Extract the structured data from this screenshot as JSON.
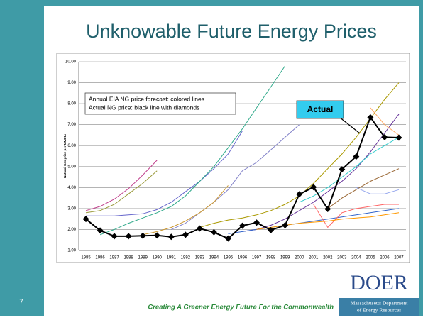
{
  "chart_data": {
    "type": "line",
    "title": "Unknowable Future Energy Prices",
    "y_label": "Natural Gas price per MMBtu",
    "annotations": [
      "Annual EIA NG price forecast: colored lines",
      "Actual NG price: black line with diamonds"
    ],
    "callout": "Actual",
    "categories": [
      "1985",
      "1986",
      "1987",
      "1988",
      "1989",
      "1990",
      "1991",
      "1992",
      "1993",
      "1994",
      "1995",
      "1996",
      "1997",
      "1998",
      "1999",
      "2000",
      "2001",
      "2002",
      "2003",
      "2004",
      "2005",
      "2006",
      "2007"
    ],
    "ylim": [
      1,
      10
    ],
    "yticks": [
      {
        "value": 1,
        "label": "1.00"
      },
      {
        "value": 2,
        "label": "2.00"
      },
      {
        "value": 3,
        "label": "3.00"
      },
      {
        "value": 4,
        "label": "4.00"
      },
      {
        "value": 5,
        "label": "5.00"
      },
      {
        "value": 6,
        "label": "6.00"
      },
      {
        "value": 7,
        "label": "7.00"
      },
      {
        "value": 8,
        "label": "8.00"
      },
      {
        "value": 9,
        "label": "9.00"
      },
      {
        "value": 10,
        "label": "10.00"
      }
    ],
    "grid": true,
    "actual": {
      "color": "#000000",
      "values": [
        2.5,
        1.95,
        1.68,
        1.68,
        1.7,
        1.72,
        1.65,
        1.75,
        2.05,
        1.87,
        1.57,
        2.18,
        2.33,
        1.97,
        2.2,
        3.68,
        4.02,
        2.98,
        4.87,
        5.48,
        7.35,
        6.4,
        6.38
      ]
    },
    "series": [
      {
        "color": "#c0408c",
        "values": [
          2.9,
          3.1,
          3.45,
          3.95,
          4.6,
          5.3,
          null,
          null,
          null,
          null,
          null,
          null,
          null,
          null,
          null,
          null,
          null,
          null,
          null,
          null,
          null,
          null,
          null
        ]
      },
      {
        "color": "#99993a",
        "values": [
          2.8,
          2.9,
          3.2,
          3.7,
          4.2,
          4.8,
          null,
          null,
          null,
          null,
          null,
          null,
          null,
          null,
          null,
          null,
          null,
          null,
          null,
          null,
          null,
          null,
          null
        ]
      },
      {
        "color": "#6666cc",
        "values": [
          2.65,
          2.65,
          2.65,
          2.7,
          2.75,
          2.95,
          3.3,
          3.8,
          4.3,
          4.9,
          5.6,
          6.7,
          null,
          null,
          null,
          null,
          null,
          null,
          null,
          null,
          null,
          null,
          null
        ]
      },
      {
        "color": "#2fa98a",
        "values": [
          null,
          1.75,
          2.0,
          2.3,
          2.55,
          2.8,
          3.1,
          3.6,
          4.3,
          5.0,
          5.9,
          6.8,
          7.8,
          8.8,
          9.8,
          null,
          null,
          null,
          null,
          null,
          null,
          null,
          null
        ]
      },
      {
        "color": "#8080c8",
        "values": [
          null,
          null,
          null,
          null,
          null,
          null,
          2.0,
          2.3,
          2.8,
          3.3,
          3.9,
          4.8,
          5.2,
          5.8,
          6.4,
          7.0,
          null,
          null,
          null,
          null,
          null,
          null,
          null
        ]
      },
      {
        "color": "#cc9933",
        "values": [
          null,
          null,
          null,
          null,
          1.75,
          1.9,
          2.1,
          2.4,
          2.8,
          3.3,
          4.1,
          null,
          null,
          null,
          null,
          null,
          null,
          null,
          null,
          null,
          null,
          null,
          null
        ]
      },
      {
        "color": "#aa9900",
        "values": [
          null,
          null,
          null,
          null,
          null,
          null,
          null,
          null,
          2.1,
          2.3,
          2.45,
          2.55,
          2.7,
          2.9,
          3.2,
          3.6,
          4.2,
          4.9,
          5.6,
          6.4,
          7.3,
          8.2,
          9.0
        ]
      },
      {
        "color": "#663399",
        "values": [
          null,
          null,
          null,
          null,
          null,
          null,
          null,
          null,
          null,
          null,
          null,
          1.9,
          2.0,
          2.2,
          2.5,
          2.9,
          3.3,
          3.8,
          4.3,
          4.9,
          5.7,
          6.6,
          7.5
        ]
      },
      {
        "color": "#33cccc",
        "values": [
          null,
          null,
          null,
          null,
          null,
          null,
          null,
          null,
          null,
          null,
          null,
          null,
          null,
          null,
          null,
          3.3,
          3.6,
          4.0,
          4.5,
          5.0,
          5.6,
          6.0,
          6.4
        ]
      },
      {
        "color": "#996633",
        "values": [
          null,
          null,
          null,
          null,
          null,
          null,
          null,
          null,
          null,
          null,
          null,
          null,
          null,
          null,
          null,
          null,
          null,
          3.0,
          3.5,
          3.9,
          4.3,
          4.6,
          4.9
        ]
      },
      {
        "color": "#ffaa66",
        "values": [
          null,
          null,
          null,
          null,
          null,
          null,
          null,
          null,
          null,
          null,
          null,
          null,
          null,
          null,
          null,
          null,
          null,
          null,
          null,
          null,
          7.8,
          7.0,
          6.5
        ]
      },
      {
        "color": "#99aaee",
        "values": [
          null,
          null,
          null,
          null,
          null,
          null,
          null,
          null,
          null,
          null,
          null,
          null,
          null,
          null,
          null,
          null,
          null,
          null,
          null,
          4.0,
          3.7,
          3.7,
          3.9
        ]
      },
      {
        "color": "#3366cc",
        "values": [
          null,
          null,
          null,
          null,
          null,
          null,
          null,
          null,
          null,
          null,
          1.8,
          1.9,
          2.0,
          2.1,
          2.2,
          2.3,
          2.4,
          2.5,
          2.6,
          2.7,
          2.8,
          2.9,
          3.0
        ]
      },
      {
        "color": "#ff6666",
        "values": [
          null,
          null,
          null,
          null,
          null,
          null,
          null,
          null,
          null,
          null,
          null,
          null,
          null,
          null,
          null,
          null,
          3.2,
          2.1,
          2.8,
          3.0,
          3.1,
          3.2,
          3.2
        ]
      },
      {
        "color": "#ff9900",
        "values": [
          null,
          null,
          null,
          null,
          null,
          null,
          null,
          null,
          null,
          null,
          null,
          null,
          2.0,
          2.1,
          2.2,
          2.3,
          2.35,
          2.4,
          2.5,
          2.55,
          2.6,
          2.7,
          2.8
        ]
      }
    ]
  },
  "slide": {
    "page_number": "7",
    "tagline": "Creating A Greener Energy Future For the Commonwealth",
    "logo": "DOER",
    "logo_line1": "Massachusetts Department",
    "logo_line2": "of Energy Resources"
  }
}
